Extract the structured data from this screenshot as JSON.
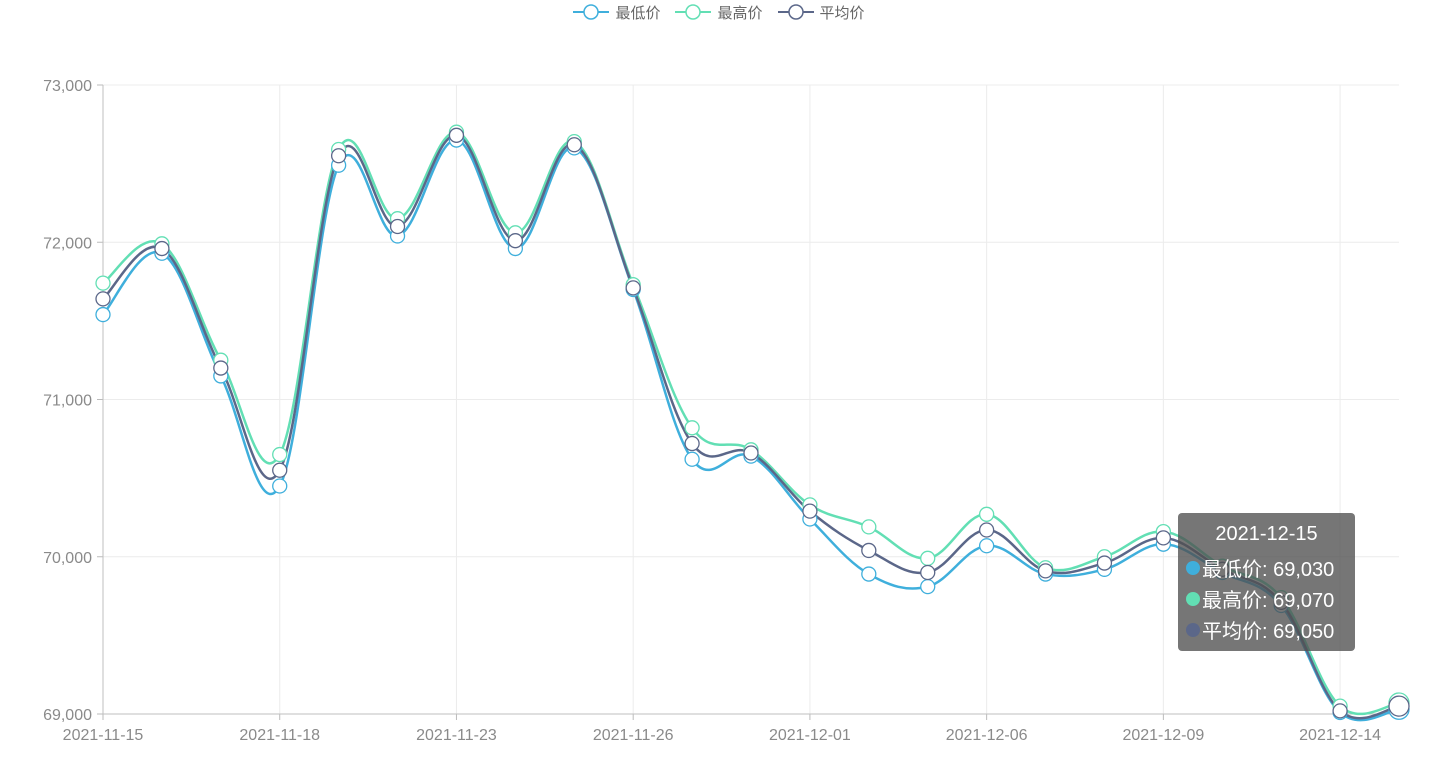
{
  "legend": [
    {
      "name": "最低价",
      "color": "#3fafdc"
    },
    {
      "name": "最高价",
      "color": "#62dfb4"
    },
    {
      "name": "平均价",
      "color": "#5b6789"
    }
  ],
  "tooltip": {
    "title": "2021-12-15",
    "rows": [
      {
        "label": "最低价: 69,030",
        "color": "#3fafdc"
      },
      {
        "label": "最高价: 69,070",
        "color": "#62dfb4"
      },
      {
        "label": "平均价: 69,050",
        "color": "#5b6789"
      }
    ]
  },
  "chart_data": {
    "type": "line",
    "smooth": true,
    "x": [
      "2021-11-15",
      "2021-11-16",
      "2021-11-17",
      "2021-11-18",
      "2021-11-19",
      "2021-11-22",
      "2021-11-23",
      "2021-11-24",
      "2021-11-25",
      "2021-11-26",
      "2021-11-29",
      "2021-11-30",
      "2021-12-01",
      "2021-12-02",
      "2021-12-03",
      "2021-12-06",
      "2021-12-07",
      "2021-12-08",
      "2021-12-09",
      "2021-12-10",
      "2021-12-13",
      "2021-12-14",
      "2021-12-15"
    ],
    "x_tick_labels": [
      "2021-11-15",
      "2021-11-18",
      "2021-11-23",
      "2021-11-26",
      "2021-12-01",
      "2021-12-06",
      "2021-12-09",
      "2021-12-14"
    ],
    "x_tick_values": [
      "2021-11-15",
      "2021-11-18",
      "2021-11-23",
      "2021-11-26",
      "2021-12-01",
      "2021-12-06",
      "2021-12-09",
      "2021-12-14"
    ],
    "y_ticks": [
      69000,
      70000,
      71000,
      72000,
      73000
    ],
    "y_tick_labels": [
      "69,000",
      "70,000",
      "71,000",
      "72,000",
      "73,000"
    ],
    "ylim": [
      69000,
      73000
    ],
    "grid": true,
    "legend_position": "top-center",
    "series": [
      {
        "name": "最低价",
        "color": "#3fafdc",
        "values": [
          71540,
          71930,
          71150,
          70450,
          72490,
          72040,
          72650,
          71960,
          72600,
          71700,
          70620,
          70640,
          70240,
          69890,
          69810,
          70070,
          69890,
          69920,
          70080,
          69900,
          69690,
          69010,
          69030
        ]
      },
      {
        "name": "最高价",
        "color": "#62dfb4",
        "values": [
          71740,
          71990,
          71250,
          70650,
          72590,
          72150,
          72700,
          72060,
          72640,
          71730,
          70820,
          70680,
          70330,
          70190,
          69990,
          70270,
          69930,
          70000,
          70160,
          69940,
          69740,
          69050,
          69070
        ]
      },
      {
        "name": "平均价",
        "color": "#5b6789",
        "values": [
          71640,
          71960,
          71200,
          70550,
          72550,
          72100,
          72680,
          72010,
          72620,
          71710,
          70720,
          70660,
          70290,
          70040,
          69900,
          70170,
          69910,
          69960,
          70120,
          69920,
          69710,
          69020,
          69050
        ]
      }
    ],
    "highlight_index": 22
  }
}
